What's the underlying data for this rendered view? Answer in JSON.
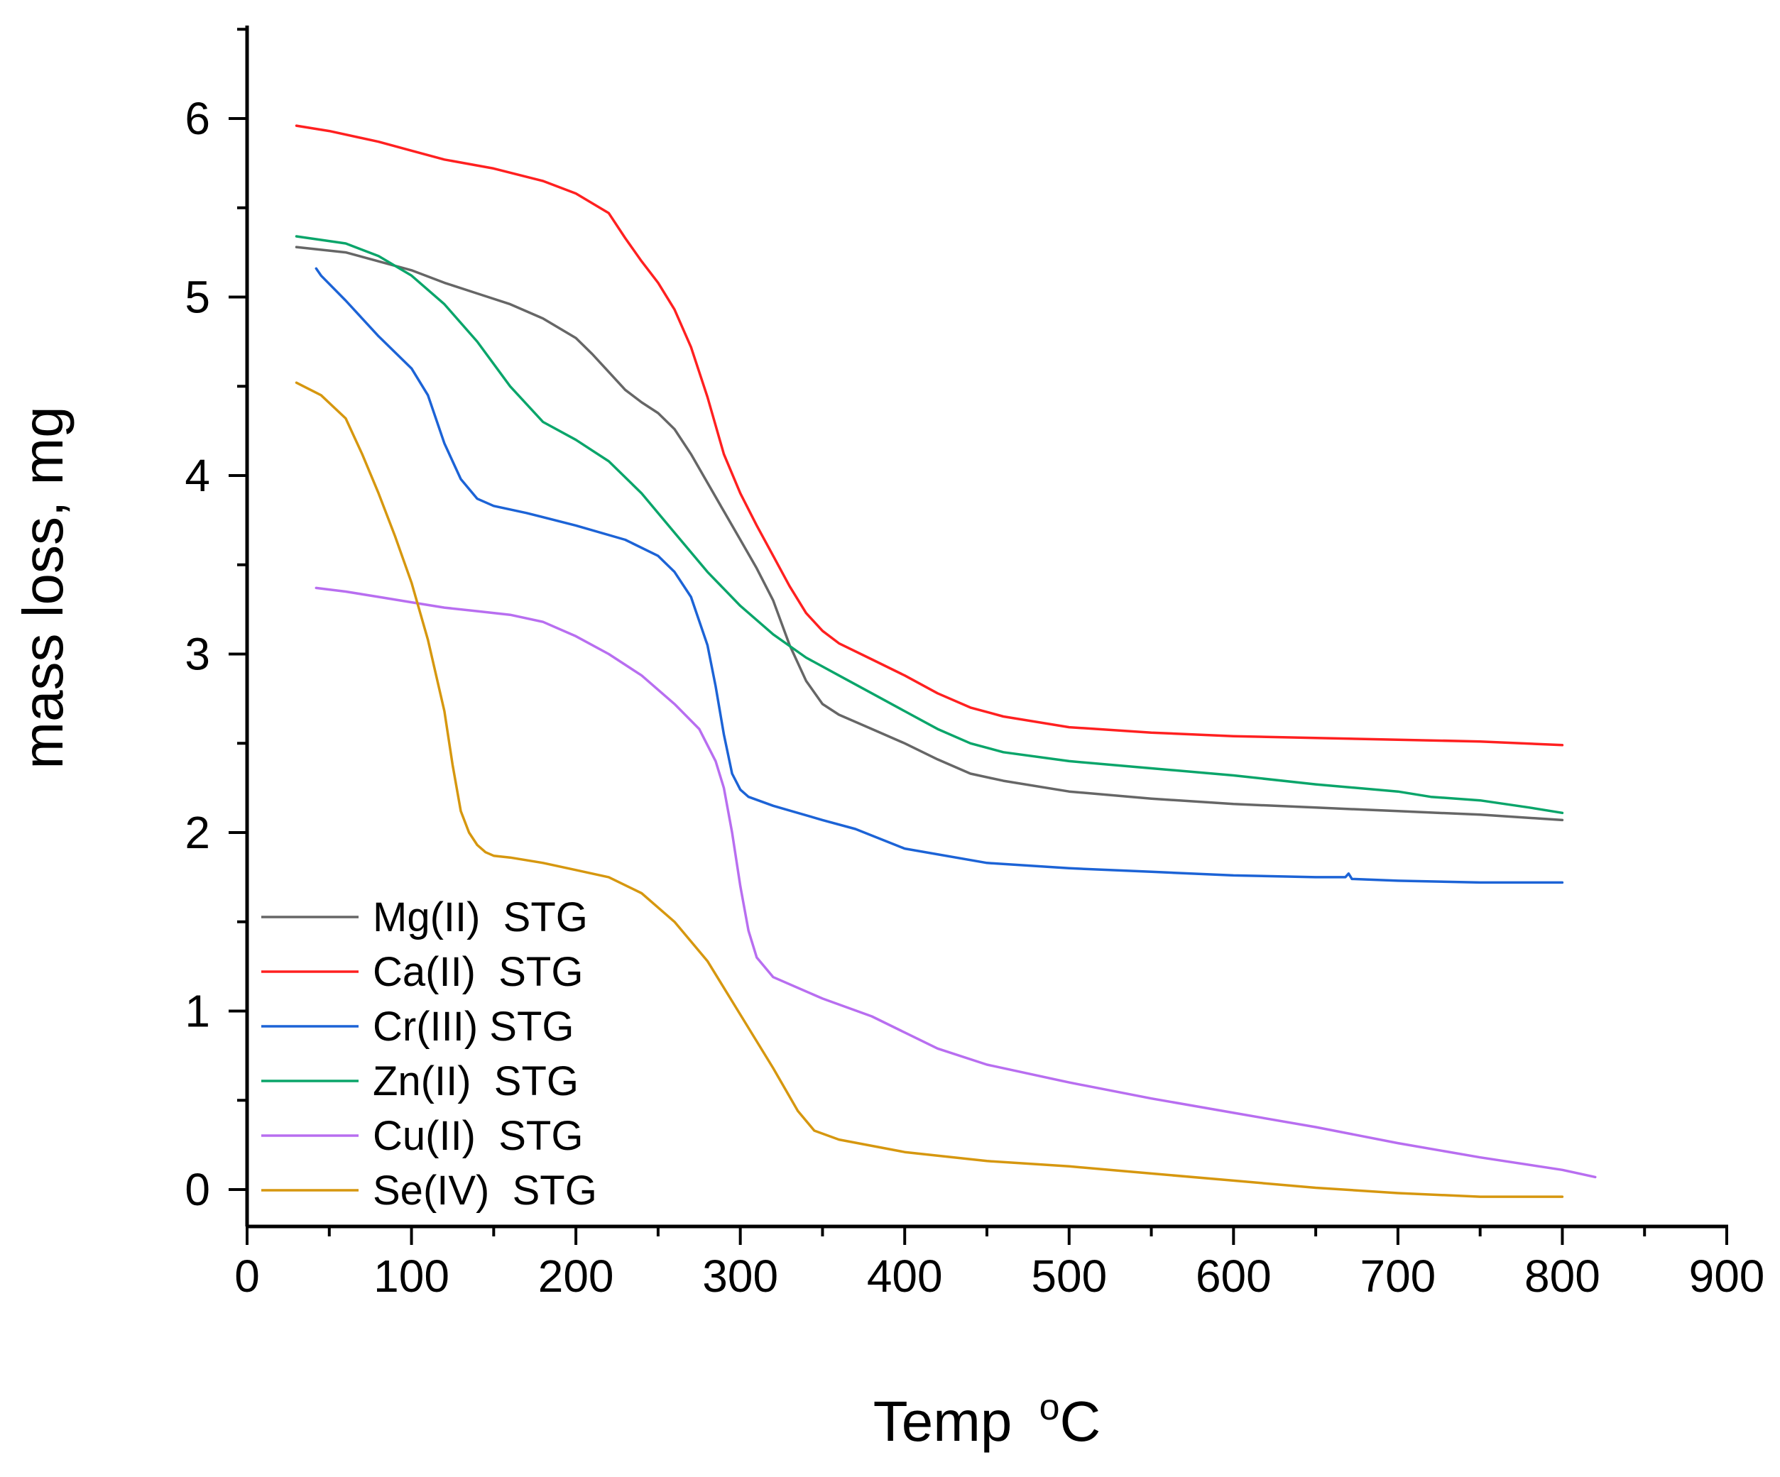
{
  "chart_data": {
    "type": "line",
    "title": "",
    "xlabel": "Temp",
    "xlabel_super": "o",
    "xlabel_unit": "C",
    "ylabel": "mass loss, mg",
    "xlim": [
      0,
      900
    ],
    "ylim": [
      -0.2,
      6.5
    ],
    "xticks": [
      0,
      100,
      200,
      300,
      400,
      500,
      600,
      700,
      800,
      900
    ],
    "yticks": [
      0,
      1,
      2,
      3,
      4,
      5,
      6
    ],
    "grid": false,
    "legend_position": "bottom-left",
    "series": [
      {
        "name": "Mg(II)  STG",
        "color": "#666666",
        "x": [
          30,
          60,
          80,
          100,
          120,
          140,
          160,
          180,
          200,
          210,
          220,
          230,
          240,
          250,
          260,
          270,
          280,
          290,
          300,
          310,
          320,
          330,
          340,
          350,
          360,
          380,
          400,
          420,
          440,
          460,
          500,
          550,
          600,
          650,
          700,
          750,
          800
        ],
        "y": [
          5.28,
          5.25,
          5.2,
          5.15,
          5.08,
          5.02,
          4.96,
          4.88,
          4.77,
          4.68,
          4.58,
          4.48,
          4.41,
          4.35,
          4.26,
          4.12,
          3.96,
          3.8,
          3.64,
          3.48,
          3.3,
          3.05,
          2.85,
          2.72,
          2.66,
          2.58,
          2.5,
          2.41,
          2.33,
          2.29,
          2.23,
          2.19,
          2.16,
          2.14,
          2.12,
          2.1,
          2.07
        ]
      },
      {
        "name": "Ca(II)  STG",
        "color": "#ff2020",
        "x": [
          30,
          50,
          80,
          100,
          120,
          150,
          180,
          200,
          220,
          230,
          240,
          250,
          260,
          270,
          280,
          290,
          300,
          310,
          320,
          330,
          340,
          350,
          360,
          380,
          400,
          420,
          440,
          460,
          500,
          550,
          600,
          650,
          700,
          750,
          800
        ],
        "y": [
          5.96,
          5.93,
          5.87,
          5.82,
          5.77,
          5.72,
          5.65,
          5.58,
          5.47,
          5.33,
          5.2,
          5.08,
          4.93,
          4.72,
          4.44,
          4.12,
          3.9,
          3.72,
          3.55,
          3.38,
          3.23,
          3.13,
          3.06,
          2.97,
          2.88,
          2.78,
          2.7,
          2.65,
          2.59,
          2.56,
          2.54,
          2.53,
          2.52,
          2.51,
          2.49
        ]
      },
      {
        "name": "Cr(III) STG",
        "color": "#1c63d6",
        "x": [
          42,
          45,
          60,
          80,
          100,
          110,
          120,
          130,
          140,
          150,
          170,
          200,
          230,
          250,
          260,
          270,
          280,
          285,
          290,
          295,
          300,
          305,
          320,
          350,
          370,
          400,
          450,
          500,
          550,
          600,
          650,
          668,
          670,
          672,
          700,
          750,
          800
        ],
        "y": [
          5.16,
          5.12,
          4.98,
          4.78,
          4.6,
          4.45,
          4.18,
          3.98,
          3.87,
          3.83,
          3.79,
          3.72,
          3.64,
          3.55,
          3.46,
          3.32,
          3.05,
          2.82,
          2.55,
          2.33,
          2.24,
          2.2,
          2.15,
          2.07,
          2.02,
          1.91,
          1.83,
          1.8,
          1.78,
          1.76,
          1.75,
          1.75,
          1.77,
          1.74,
          1.73,
          1.72,
          1.72
        ]
      },
      {
        "name": "Zn(II)  STG",
        "color": "#0aa56a",
        "x": [
          30,
          60,
          80,
          100,
          120,
          140,
          160,
          180,
          200,
          220,
          240,
          260,
          280,
          300,
          320,
          340,
          360,
          380,
          400,
          420,
          440,
          460,
          500,
          550,
          600,
          650,
          700,
          720,
          750,
          780,
          800
        ],
        "y": [
          5.34,
          5.3,
          5.23,
          5.12,
          4.96,
          4.75,
          4.5,
          4.3,
          4.2,
          4.08,
          3.9,
          3.68,
          3.46,
          3.27,
          3.11,
          2.98,
          2.88,
          2.78,
          2.68,
          2.58,
          2.5,
          2.45,
          2.4,
          2.36,
          2.32,
          2.27,
          2.23,
          2.2,
          2.18,
          2.14,
          2.11
        ]
      },
      {
        "name": "Cu(II)  STG",
        "color": "#b86ef0",
        "x": [
          42,
          60,
          80,
          100,
          120,
          140,
          160,
          180,
          200,
          220,
          240,
          260,
          275,
          285,
          290,
          295,
          300,
          305,
          310,
          320,
          350,
          380,
          400,
          420,
          450,
          500,
          550,
          600,
          650,
          700,
          750,
          800,
          820
        ],
        "y": [
          3.37,
          3.35,
          3.32,
          3.29,
          3.26,
          3.24,
          3.22,
          3.18,
          3.1,
          3.0,
          2.88,
          2.72,
          2.58,
          2.4,
          2.25,
          2.0,
          1.7,
          1.45,
          1.3,
          1.19,
          1.07,
          0.97,
          0.88,
          0.79,
          0.7,
          0.6,
          0.51,
          0.43,
          0.35,
          0.26,
          0.18,
          0.11,
          0.07
        ]
      },
      {
        "name": "Se(IV)  STG",
        "color": "#d6970f",
        "x": [
          30,
          45,
          60,
          70,
          80,
          90,
          100,
          110,
          120,
          125,
          130,
          135,
          140,
          145,
          150,
          160,
          180,
          200,
          220,
          240,
          260,
          280,
          300,
          320,
          335,
          345,
          360,
          400,
          450,
          500,
          550,
          600,
          650,
          700,
          750,
          780,
          800
        ],
        "y": [
          4.52,
          4.45,
          4.32,
          4.12,
          3.9,
          3.66,
          3.4,
          3.08,
          2.68,
          2.38,
          2.12,
          2.0,
          1.93,
          1.89,
          1.87,
          1.86,
          1.83,
          1.79,
          1.75,
          1.66,
          1.5,
          1.28,
          0.98,
          0.68,
          0.44,
          0.33,
          0.28,
          0.21,
          0.16,
          0.13,
          0.09,
          0.05,
          0.01,
          -0.02,
          -0.04,
          -0.04,
          -0.04
        ]
      }
    ]
  }
}
